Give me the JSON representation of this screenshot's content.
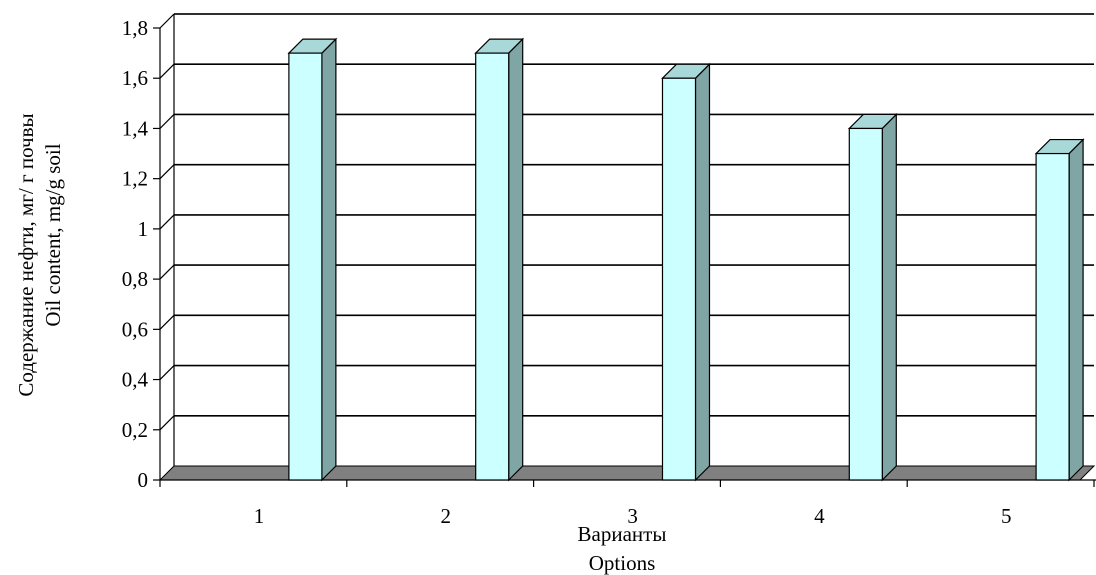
{
  "colors": {
    "bar_front": "#CCFFFF",
    "bar_side": "#7FA5A5",
    "bar_top": "#A8D8D8",
    "bar_outline": "#000000",
    "gridline": "#000000",
    "floor": "#808080"
  },
  "chart_data": {
    "type": "bar",
    "categories": [
      "1",
      "2",
      "3",
      "4",
      "5"
    ],
    "series": [
      {
        "values": [
          1.7,
          1.7,
          1.6,
          1.4,
          1.3
        ]
      }
    ],
    "ylim": [
      0,
      1.8
    ],
    "y_ticks": [
      0,
      0.2,
      0.4,
      0.6,
      0.8,
      1,
      1.2,
      1.4,
      1.6,
      1.8
    ],
    "y_tick_labels": [
      "0",
      "0,2",
      "0,4",
      "0,6",
      "0,8",
      "1",
      "1,2",
      "1,4",
      "1,6",
      "1,8"
    ],
    "ylabel_lines": [
      "Содержание нефти, мг/ г почвы",
      "Oil content, mg/g soil"
    ],
    "xlabel_lines": [
      "Варианты",
      "Options"
    ],
    "grid": true,
    "style": "3d-column"
  }
}
